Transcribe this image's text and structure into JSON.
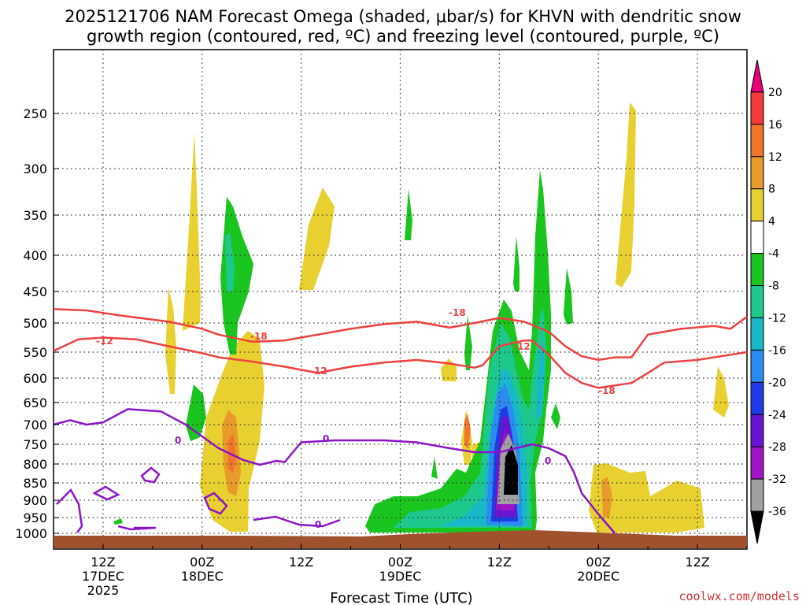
{
  "chart_data": {
    "type": "contour-time-height",
    "title_lines": [
      "2025121706 NAM Forecast Omega (shaded, μbar/s) for KHVN with dendritic snow",
      "growth region (contoured, red, ºC) and freezing level (contoured, purple, ºC)"
    ],
    "xlabel": "Forecast Time (UTC)",
    "ylabel": "",
    "credit": "coolwx.com/models",
    "y_axis": {
      "units": "hPa",
      "ticks": [
        250,
        300,
        350,
        400,
        450,
        500,
        550,
        600,
        650,
        700,
        750,
        800,
        850,
        900,
        950,
        1000
      ]
    },
    "x_axis": {
      "units": "hours from 06Z 17DEC2025",
      "range": [
        0,
        84
      ],
      "ticks": [
        {
          "hour": 6,
          "lines": [
            "12Z",
            "17DEC",
            "2025"
          ]
        },
        {
          "hour": 18,
          "lines": [
            "00Z",
            "18DEC"
          ]
        },
        {
          "hour": 30,
          "lines": [
            "12Z"
          ]
        },
        {
          "hour": 42,
          "lines": [
            "00Z",
            "19DEC"
          ]
        },
        {
          "hour": 54,
          "lines": [
            "12Z"
          ]
        },
        {
          "hour": 66,
          "lines": [
            "00Z",
            "20DEC"
          ]
        },
        {
          "hour": 78,
          "lines": [
            "12Z"
          ]
        }
      ]
    },
    "colorbar": {
      "labels": [
        "20",
        "16",
        "12",
        "8",
        "4",
        "-4",
        "-8",
        "-12",
        "-16",
        "-20",
        "-24",
        "-28",
        "-32",
        "-36"
      ],
      "colors": [
        "#e8007a",
        "#f43a3a",
        "#f0742a",
        "#e89a2a",
        "#e8d030",
        "#ffffff",
        "#19c51e",
        "#1ec88c",
        "#18b8c8",
        "#2a8cf0",
        "#1e3ce6",
        "#6a14d2",
        "#a014c8",
        "#a0a0a0",
        "#000000"
      ]
    },
    "contour_labels": {
      "dgz_minus12": "-12",
      "dgz_minus18": "-18",
      "freezing_zero": "0"
    },
    "contours": {
      "dgz_upper_minus18": {
        "level": -18,
        "color": "#f04040",
        "points": [
          [
            0,
            478
          ],
          [
            4,
            480
          ],
          [
            8,
            488
          ],
          [
            14,
            498
          ],
          [
            18,
            510
          ],
          [
            20,
            520
          ],
          [
            24,
            532
          ],
          [
            28,
            530
          ],
          [
            32,
            520
          ],
          [
            36,
            510
          ],
          [
            40,
            502
          ],
          [
            44,
            498
          ],
          [
            48,
            508
          ],
          [
            51,
            500
          ],
          [
            54,
            492
          ],
          [
            57,
            498
          ],
          [
            60,
            515
          ],
          [
            62,
            540
          ],
          [
            64,
            558
          ],
          [
            66,
            565
          ],
          [
            68,
            560
          ],
          [
            70,
            560
          ],
          [
            72,
            520
          ],
          [
            76,
            510
          ],
          [
            80,
            505
          ],
          [
            82,
            510
          ],
          [
            84,
            490
          ]
        ]
      },
      "dgz_lower_minus12": {
        "level": -12,
        "color": "#f04040",
        "points": [
          [
            0,
            548
          ],
          [
            3,
            528
          ],
          [
            6,
            525
          ],
          [
            10,
            528
          ],
          [
            14,
            540
          ],
          [
            18,
            552
          ],
          [
            20,
            560
          ],
          [
            24,
            568
          ],
          [
            28,
            578
          ],
          [
            32,
            590
          ],
          [
            36,
            578
          ],
          [
            40,
            570
          ],
          [
            44,
            565
          ],
          [
            48,
            572
          ],
          [
            51,
            580
          ],
          [
            52,
            575
          ],
          [
            54,
            540
          ],
          [
            57,
            530
          ],
          [
            58,
            530
          ],
          [
            60,
            555
          ],
          [
            62,
            590
          ],
          [
            64,
            610
          ],
          [
            66,
            620
          ],
          [
            70,
            610
          ],
          [
            72,
            590
          ],
          [
            74,
            570
          ],
          [
            78,
            565
          ],
          [
            82,
            555
          ],
          [
            84,
            550
          ]
        ]
      },
      "freezing_level_0": {
        "level": 0,
        "color": "#8c14c8",
        "points": [
          [
            0,
            700
          ],
          [
            2,
            690
          ],
          [
            4,
            700
          ],
          [
            6,
            695
          ],
          [
            9,
            665
          ],
          [
            13,
            670
          ],
          [
            16,
            700
          ],
          [
            18,
            730
          ],
          [
            20,
            760
          ],
          [
            23,
            790
          ],
          [
            25,
            802
          ],
          [
            27,
            792
          ],
          [
            28,
            795
          ],
          [
            29,
            770
          ],
          [
            30,
            745
          ],
          [
            34,
            740
          ],
          [
            40,
            740
          ],
          [
            44,
            745
          ],
          [
            48,
            760
          ],
          [
            51,
            770
          ],
          [
            54,
            770
          ],
          [
            56,
            760
          ],
          [
            58,
            750
          ],
          [
            60,
            760
          ],
          [
            62,
            780
          ],
          [
            63,
            820
          ],
          [
            64,
            880
          ],
          [
            66,
            940
          ],
          [
            68,
            1000
          ]
        ]
      }
    }
  }
}
